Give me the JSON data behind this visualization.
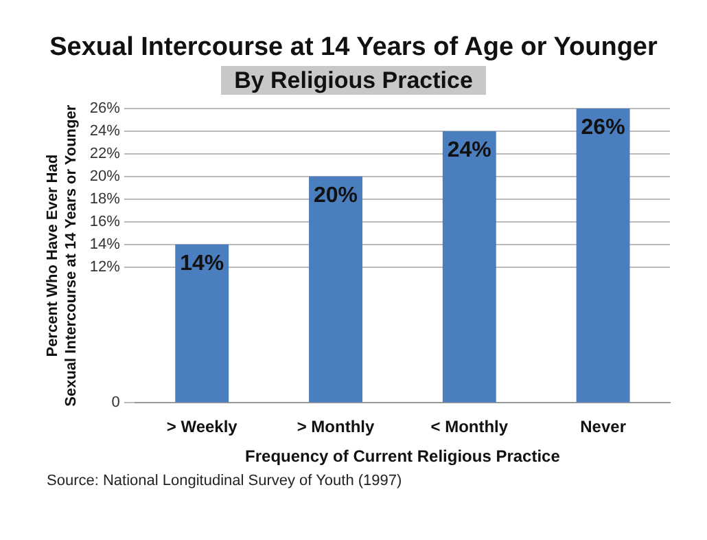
{
  "chart_data": {
    "type": "bar",
    "title": "Sexual Intercourse at 14 Years of Age or Younger",
    "subtitle": "By Religious Practice",
    "xlabel": "Frequency of Current Religious Practice",
    "ylabel": "Percent Who Have Ever Had\nSexual Intercourse at 14 Years or Younger",
    "categories": [
      "> Weekly",
      "> Monthly",
      "< Monthly",
      "Never"
    ],
    "values": [
      14,
      20,
      24,
      26
    ],
    "color": "#4a7ebf",
    "value_labels": [
      "14%",
      "20%",
      "24%",
      "26%"
    ],
    "ylim": [
      0,
      26
    ],
    "yticks": [
      0,
      {
        "value": 12,
        "label": "12%"
      },
      {
        "value": 14,
        "label": "14%"
      },
      {
        "value": 16,
        "label": "16%"
      },
      {
        "value": 18,
        "label": "18%"
      },
      {
        "value": 20,
        "label": "20%"
      },
      {
        "value": 22,
        "label": "22%"
      },
      {
        "value": 24,
        "label": "24%"
      },
      {
        "value": 26,
        "label": "26%"
      }
    ],
    "grid": "y",
    "annotations": [
      "Source:  National Longitudinal Survey of Youth (1997)"
    ]
  }
}
